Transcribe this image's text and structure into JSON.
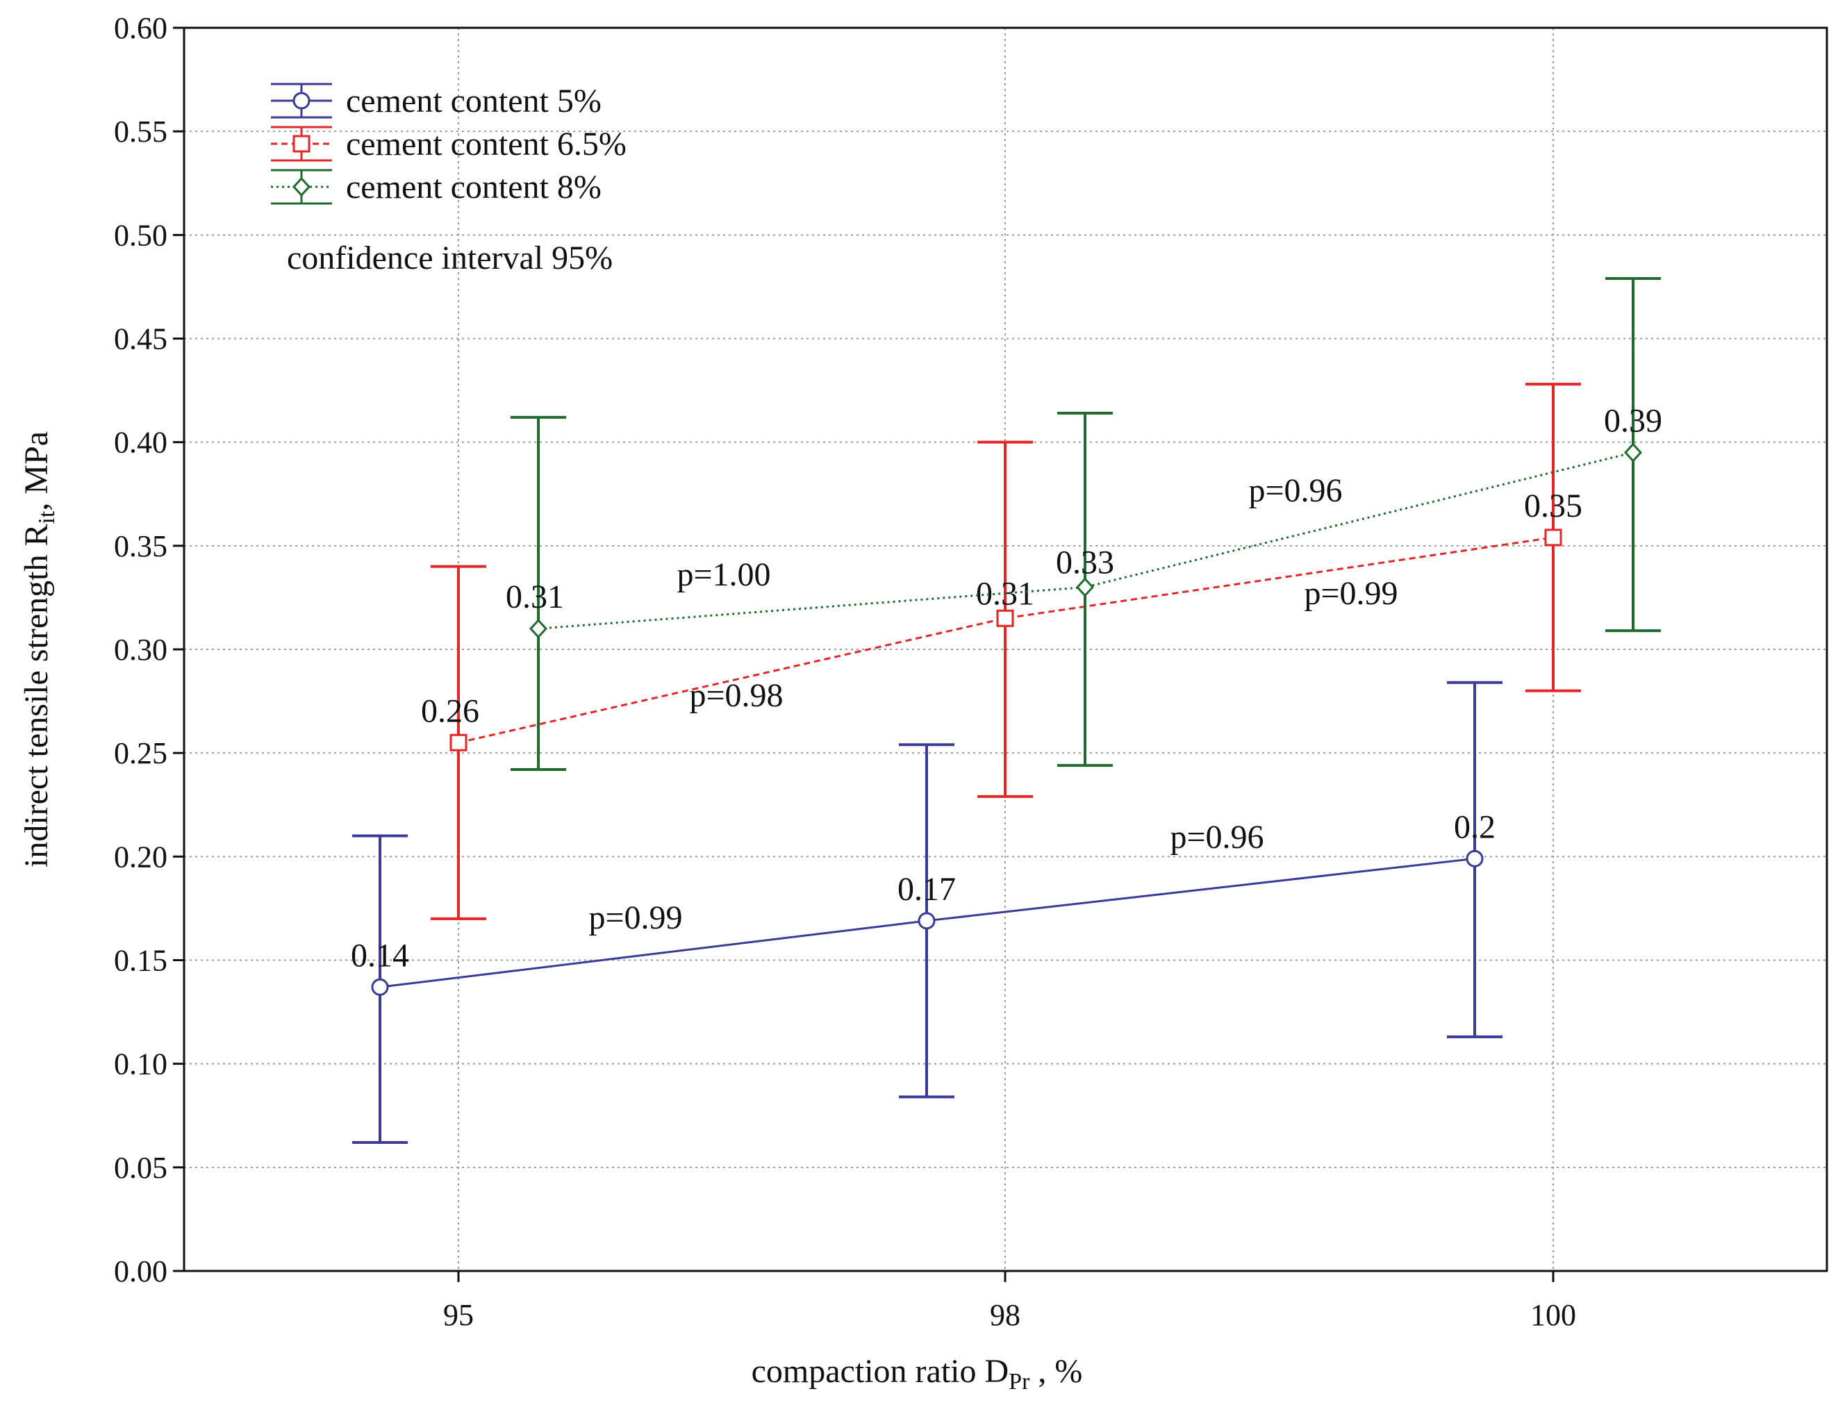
{
  "chart_data": {
    "type": "line",
    "title": "",
    "xlabel_main": "compaction ratio D",
    "xlabel_sub": "Pr",
    "xlabel_tail": " , %",
    "ylabel_main": "indirect tensile strength R",
    "ylabel_sub": "it",
    "ylabel_tail": ", MPa",
    "categories": [
      "95",
      "98",
      "100"
    ],
    "yticks": [
      "0.00",
      "0.05",
      "0.10",
      "0.15",
      "0.20",
      "0.25",
      "0.30",
      "0.35",
      "0.40",
      "0.45",
      "0.50",
      "0.55",
      "0.60"
    ],
    "ylim": [
      0,
      0.6
    ],
    "grid": true,
    "legend_position": "top-left",
    "note": "confidence interval 95%",
    "series": [
      {
        "name": "cement content 5%",
        "color": "#3a3a99",
        "marker": "circle",
        "line": "solid",
        "values": [
          0.137,
          0.169,
          0.199
        ],
        "lower": [
          0.062,
          0.084,
          0.113
        ],
        "upper": [
          0.21,
          0.254,
          0.284
        ],
        "labels": [
          "0.14",
          "0.17",
          "0.2"
        ],
        "p_values": [
          "p=0.99",
          "p=0.96"
        ]
      },
      {
        "name": "cement content 6.5%",
        "color": "#e32626",
        "marker": "square",
        "line": "dashed",
        "values": [
          0.255,
          0.315,
          0.354
        ],
        "lower": [
          0.17,
          0.229,
          0.28
        ],
        "upper": [
          0.34,
          0.4,
          0.428
        ],
        "labels": [
          "0.26",
          "0.31",
          "0.35"
        ],
        "p_values": [
          "p=0.98",
          "p=0.99"
        ]
      },
      {
        "name": "cement content 8%",
        "color": "#1f6b2e",
        "marker": "diamond",
        "line": "dotted",
        "values": [
          0.31,
          0.33,
          0.395
        ],
        "lower": [
          0.242,
          0.244,
          0.309
        ],
        "upper": [
          0.412,
          0.414,
          0.479
        ],
        "labels": [
          "0.31",
          "0.33",
          "0.39"
        ],
        "p_values": [
          "p=1.00",
          "p=0.96"
        ]
      }
    ]
  }
}
